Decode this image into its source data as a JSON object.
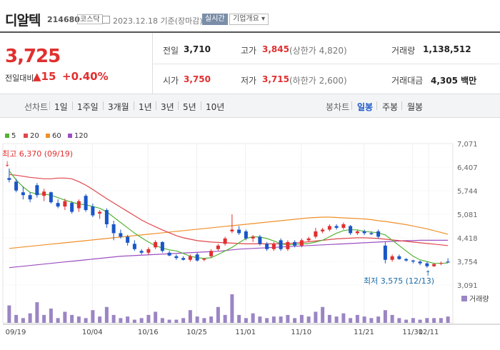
{
  "header": {
    "name": "디알텍",
    "code": "214680",
    "market": "코스닥",
    "date": "2023.12.18 기준(장마감)",
    "live_label": "실시간",
    "company_label": "기업개요"
  },
  "quote": {
    "price": "3,725",
    "change_label": "전일대비",
    "change_value": "15",
    "change_pct": "+0.40%",
    "prev_close_label": "전일",
    "prev_close": "3,710",
    "high_label": "고가",
    "high": "3,845",
    "upper_limit": "(상한가 4,820)",
    "volume_label": "거래량",
    "volume": "1,138,512",
    "open_label": "시가",
    "open": "3,750",
    "low_label": "저가",
    "low": "3,715",
    "lower_limit": "(하한가 2,600)",
    "amount_label": "거래대금",
    "amount": "4,305 백만"
  },
  "colors": {
    "up": "#e12f2f",
    "down": "#1a56c8",
    "ma5": "#55b236",
    "ma20": "#e0474c",
    "ma60": "#f0902a",
    "ma120": "#9c4fc0",
    "volume": "#9b85c4"
  },
  "period_bar": {
    "line_chart_title": "선차트",
    "line_periods": [
      "1일",
      "1주일",
      "3개월",
      "1년",
      "3년",
      "5년",
      "10년"
    ],
    "candle_title": "봉차트",
    "candle_periods": [
      "일봉",
      "주봉",
      "월봉"
    ],
    "active_candle": "일봉"
  },
  "chart_data": {
    "type": "candlestick",
    "legend": [
      "5",
      "20",
      "60",
      "120"
    ],
    "y_ticks": [
      "7,071",
      "6,407",
      "5,744",
      "5,081",
      "4,418",
      "3,754",
      "3,091"
    ],
    "ylim": [
      3091,
      7071
    ],
    "x_ticks": [
      "09/19",
      "10/04",
      "10/16",
      "10/25",
      "11/01",
      "11/10",
      "11/21",
      "11/30",
      "12/11"
    ],
    "high_annotation": "최고 6,370 (09/19)",
    "low_annotation": "최저 3,575 (12/13)",
    "volume_label": "거래량",
    "candles": [
      [
        6100,
        6370,
        5980,
        6050
      ],
      [
        6000,
        6080,
        5700,
        5750
      ],
      [
        5700,
        5860,
        5500,
        5620
      ],
      [
        5620,
        5700,
        5420,
        5500
      ],
      [
        5900,
        5960,
        5550,
        5620
      ],
      [
        5600,
        5800,
        5450,
        5720
      ],
      [
        5700,
        5720,
        5380,
        5420
      ],
      [
        5400,
        5500,
        5250,
        5300
      ],
      [
        5300,
        5520,
        5200,
        5450
      ],
      [
        5400,
        5450,
        5100,
        5150
      ],
      [
        5250,
        5500,
        5150,
        5450
      ],
      [
        5600,
        5650,
        5150,
        5200
      ],
      [
        5300,
        5380,
        5000,
        5050
      ],
      [
        5100,
        5200,
        4950,
        5150
      ],
      [
        5200,
        5250,
        4700,
        4800
      ],
      [
        4800,
        4900,
        4350,
        4550
      ],
      [
        4550,
        4650,
        4400,
        4450
      ],
      [
        4450,
        4500,
        4200,
        4280
      ],
      [
        4250,
        4350,
        4050,
        4100
      ],
      [
        4050,
        4100,
        3950,
        4000
      ],
      [
        4000,
        4150,
        3950,
        4100
      ],
      [
        4150,
        4350,
        4100,
        4300
      ],
      [
        4300,
        4320,
        4000,
        4050
      ],
      [
        4000,
        4050,
        3900,
        3920
      ],
      [
        3900,
        3950,
        3800,
        3850
      ],
      [
        3850,
        3900,
        3780,
        3800
      ],
      [
        3800,
        3950,
        3750,
        3900
      ],
      [
        3950,
        4000,
        3750,
        3780
      ],
      [
        3800,
        3850,
        3760,
        3830
      ],
      [
        3900,
        4100,
        3850,
        4050
      ],
      [
        4100,
        4250,
        4050,
        4200
      ],
      [
        4250,
        4450,
        4200,
        4400
      ],
      [
        4600,
        5080,
        4550,
        4650
      ],
      [
        4650,
        4750,
        4500,
        4550
      ],
      [
        4600,
        4650,
        4350,
        4400
      ],
      [
        4400,
        4500,
        4300,
        4450
      ],
      [
        4450,
        4500,
        4200,
        4250
      ],
      [
        4250,
        4300,
        4050,
        4100
      ],
      [
        4100,
        4300,
        4050,
        4250
      ],
      [
        4350,
        4400,
        4050,
        4100
      ],
      [
        4100,
        4350,
        4050,
        4300
      ],
      [
        4300,
        4350,
        4150,
        4200
      ],
      [
        4200,
        4400,
        4150,
        4350
      ],
      [
        4350,
        4450,
        4300,
        4400
      ],
      [
        4450,
        4700,
        4400,
        4600
      ],
      [
        4600,
        4700,
        4550,
        4650
      ],
      [
        4650,
        4800,
        4600,
        4750
      ],
      [
        4750,
        4800,
        4650,
        4700
      ],
      [
        4700,
        4850,
        4650,
        4800
      ],
      [
        4750,
        4780,
        4500,
        4550
      ],
      [
        4550,
        4650,
        4500,
        4600
      ],
      [
        4600,
        4650,
        4500,
        4550
      ],
      [
        4550,
        4600,
        4500,
        4520
      ],
      [
        4600,
        4650,
        4400,
        4450
      ],
      [
        4200,
        4300,
        3700,
        3800
      ],
      [
        3800,
        3950,
        3750,
        3900
      ],
      [
        3900,
        3950,
        3800,
        3820
      ],
      [
        3820,
        3850,
        3750,
        3780
      ],
      [
        3780,
        3800,
        3700,
        3750
      ],
      [
        3750,
        3780,
        3650,
        3700
      ],
      [
        3700,
        3750,
        3575,
        3620
      ],
      [
        3620,
        3700,
        3600,
        3680
      ],
      [
        3700,
        3750,
        3650,
        3710
      ],
      [
        3750,
        3845,
        3715,
        3725
      ]
    ],
    "volumes": [
      22,
      10,
      6,
      12,
      26,
      10,
      18,
      6,
      14,
      10,
      8,
      6,
      16,
      8,
      20,
      10,
      6,
      8,
      4,
      6,
      10,
      14,
      6,
      4,
      4,
      6,
      16,
      8,
      6,
      8,
      20,
      10,
      36,
      10,
      6,
      12,
      8,
      6,
      8,
      8,
      10,
      6,
      10,
      8,
      14,
      20,
      10,
      8,
      12,
      6,
      10,
      8,
      6,
      8,
      16,
      10,
      6,
      4,
      6,
      4,
      6,
      6,
      6,
      8
    ],
    "ma5": [
      6300,
      6050,
      5850,
      5700,
      5650,
      5650,
      5620,
      5550,
      5480,
      5420,
      5370,
      5350,
      5300,
      5250,
      5150,
      5000,
      4850,
      4700,
      4550,
      4420,
      4300,
      4200,
      4130,
      4080,
      4050,
      3980,
      3900,
      3860,
      3840,
      3860,
      3950,
      4050,
      4150,
      4280,
      4400,
      4450,
      4440,
      4400,
      4330,
      4250,
      4220,
      4230,
      4250,
      4260,
      4300,
      4350,
      4450,
      4550,
      4620,
      4650,
      4640,
      4600,
      4580,
      4560,
      4500,
      4350,
      4200,
      4050,
      3900,
      3800,
      3750,
      3700,
      3700,
      3710
    ],
    "ma20": [
      6200,
      6180,
      6150,
      6120,
      6100,
      6080,
      6080,
      6100,
      6100,
      6080,
      6000,
      5900,
      5780,
      5650,
      5520,
      5400,
      5280,
      5160,
      5040,
      4920,
      4820,
      4730,
      4640,
      4560,
      4480,
      4420,
      4380,
      4340,
      4320,
      4300,
      4290,
      4280,
      4270,
      4260,
      4250,
      4250,
      4250,
      4250,
      4250,
      4250,
      4260,
      4270,
      4290,
      4310,
      4330,
      4350,
      4370,
      4390,
      4400,
      4410,
      4420,
      4420,
      4410,
      4400,
      4380,
      4360,
      4340,
      4320,
      4300,
      4280,
      4260,
      4240,
      4220,
      4200
    ],
    "ma60": [
      4120,
      4140,
      4160,
      4180,
      4200,
      4220,
      4240,
      4260,
      4280,
      4300,
      4320,
      4340,
      4360,
      4380,
      4400,
      4420,
      4440,
      4460,
      4480,
      4500,
      4520,
      4540,
      4560,
      4580,
      4600,
      4620,
      4640,
      4660,
      4680,
      4700,
      4720,
      4740,
      4760,
      4780,
      4800,
      4820,
      4840,
      4860,
      4880,
      4900,
      4920,
      4940,
      4960,
      4980,
      4990,
      5000,
      5000,
      4990,
      4980,
      4970,
      4960,
      4950,
      4930,
      4900,
      4880,
      4850,
      4820,
      4790,
      4750,
      4710,
      4670,
      4620,
      4570,
      4520
    ],
    "ma120": [
      3580,
      3600,
      3620,
      3640,
      3660,
      3680,
      3700,
      3720,
      3740,
      3760,
      3780,
      3800,
      3820,
      3840,
      3860,
      3880,
      3900,
      3910,
      3920,
      3930,
      3940,
      3950,
      3960,
      3970,
      3980,
      3990,
      4000,
      4010,
      4020,
      4030,
      4040,
      4060,
      4080,
      4100,
      4110,
      4120,
      4130,
      4140,
      4150,
      4160,
      4170,
      4180,
      4190,
      4200,
      4210,
      4220,
      4230,
      4240,
      4250,
      4260,
      4270,
      4280,
      4290,
      4300,
      4310,
      4320,
      4330,
      4340,
      4340,
      4350,
      4350,
      4350,
      4350,
      4350
    ]
  }
}
